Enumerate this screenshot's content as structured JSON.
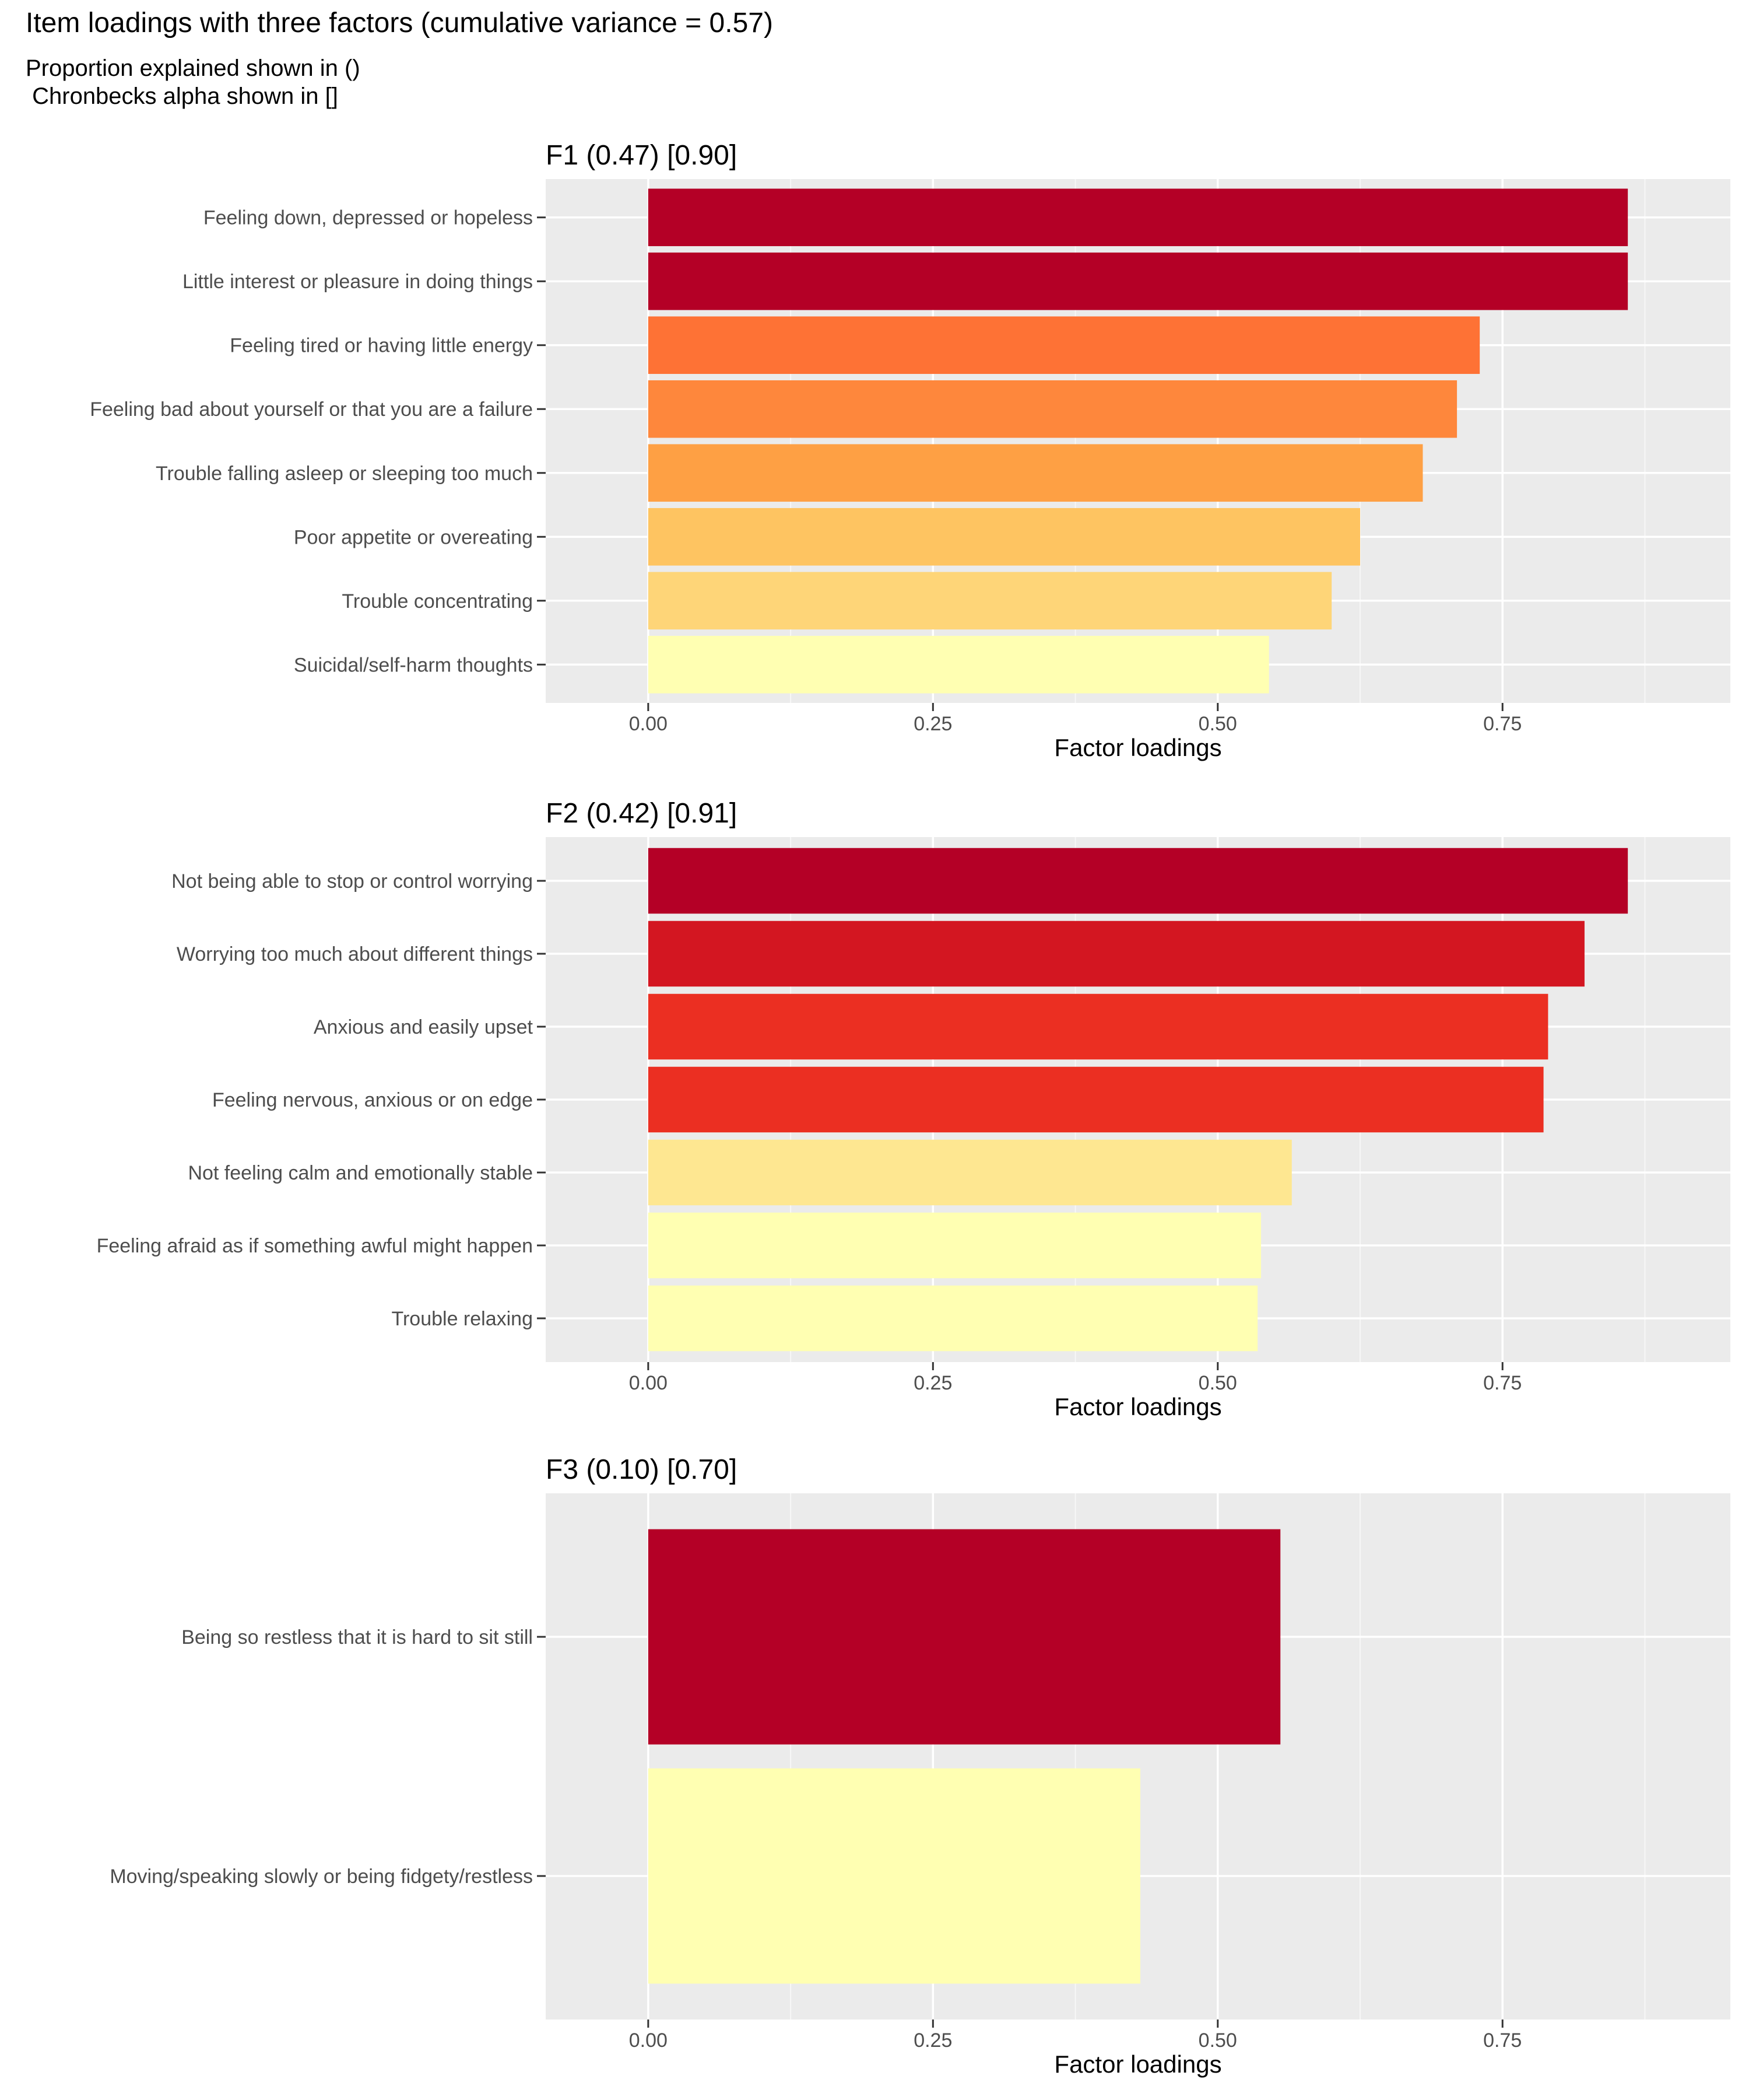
{
  "title": "Item loadings with three factors (cumulative variance = 0.57)",
  "subtitle_lines": [
    "Proportion explained shown in ()",
    " Chronbecks alpha shown in []"
  ],
  "chart_data": [
    {
      "type": "bar",
      "orientation": "horizontal",
      "title": "F1 (0.47) [0.90]",
      "xlabel": "Factor loadings",
      "ylabel": "",
      "xlim": [
        -0.09,
        0.95
      ],
      "xticks": [
        "0.00",
        "0.25",
        "0.50",
        "0.75"
      ],
      "grid": true,
      "categories": [
        "Feeling down, depressed or hopeless",
        "Little interest or pleasure in doing things",
        "Feeling tired or having little energy",
        "Feeling bad about yourself or that you are a failure",
        "Trouble falling asleep or sleeping too much",
        "Poor appetite or overeating",
        "Trouble concentrating",
        "Suicidal/self-harm thoughts"
      ],
      "values": [
        0.86,
        0.86,
        0.73,
        0.71,
        0.68,
        0.625,
        0.6,
        0.545
      ],
      "colors": [
        "#B40026",
        "#B40026",
        "#FE7235",
        "#FE873C",
        "#FEA044",
        "#FEC461",
        "#FED578",
        "#FFFFB2"
      ]
    },
    {
      "type": "bar",
      "orientation": "horizontal",
      "title": "F2 (0.42) [0.91]",
      "xlabel": "Factor loadings",
      "ylabel": "",
      "xlim": [
        -0.09,
        0.95
      ],
      "xticks": [
        "0.00",
        "0.25",
        "0.50",
        "0.75"
      ],
      "grid": true,
      "categories": [
        "Not being able to stop or control worrying",
        "Worrying too much about different things",
        "Anxious and easily upset",
        "Feeling nervous, anxious or on edge",
        "Not feeling calm and emotionally stable",
        "Feeling afraid as if something awful might happen",
        "Trouble relaxing"
      ],
      "values": [
        0.86,
        0.822,
        0.79,
        0.786,
        0.565,
        0.538,
        0.535
      ],
      "colors": [
        "#B40026",
        "#D31621",
        "#EB2F22",
        "#EB2F22",
        "#FEE791",
        "#FFFFB2",
        "#FFFFB2"
      ]
    },
    {
      "type": "bar",
      "orientation": "horizontal",
      "title": "F3 (0.10) [0.70]",
      "xlabel": "Factor loadings",
      "ylabel": "",
      "xlim": [
        -0.09,
        0.95
      ],
      "xticks": [
        "0.00",
        "0.25",
        "0.50",
        "0.75"
      ],
      "grid": true,
      "categories": [
        "Being so restless that it is hard to sit still",
        "Moving/speaking slowly or being fidgety/restless"
      ],
      "values": [
        0.555,
        0.432
      ],
      "colors": [
        "#B40026",
        "#FFFFB2"
      ]
    }
  ]
}
